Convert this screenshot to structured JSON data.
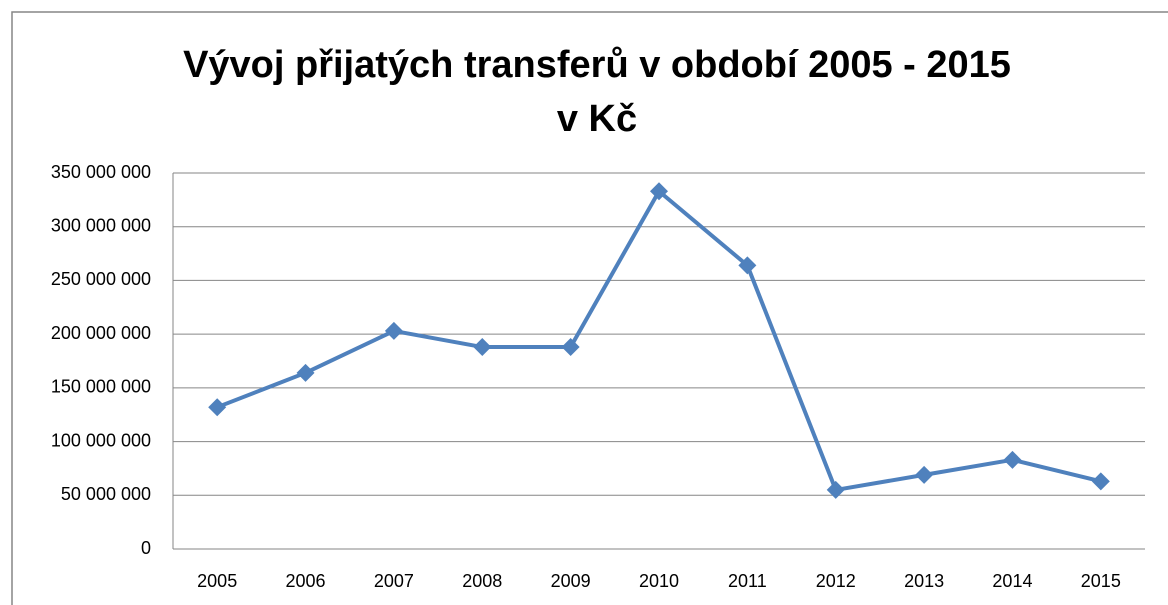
{
  "chart_data": {
    "type": "line",
    "title": "Vývoj přijatých transferů v období 2005 - 2015",
    "subtitle": "v Kč",
    "categories": [
      "2005",
      "2006",
      "2007",
      "2008",
      "2009",
      "2010",
      "2011",
      "2012",
      "2013",
      "2014",
      "2015"
    ],
    "values": [
      132000000,
      164000000,
      203000000,
      188000000,
      188000000,
      333000000,
      264000000,
      55000000,
      69000000,
      83000000,
      63000000
    ],
    "color": "#4f81bd",
    "ylim": [
      0,
      350000000
    ],
    "yticks": [
      0,
      {
        "value": 50000000,
        "label": "50 000 000"
      },
      {
        "value": 100000000,
        "label": "100 000 000"
      },
      {
        "value": 150000000,
        "label": "150 000 000"
      },
      {
        "value": 200000000,
        "label": "200 000 000"
      },
      {
        "value": 250000000,
        "label": "250 000 000"
      },
      {
        "value": 300000000,
        "label": "300 000 000"
      },
      {
        "value": 350000000,
        "label": "350 000 000"
      }
    ],
    "grid": true
  }
}
